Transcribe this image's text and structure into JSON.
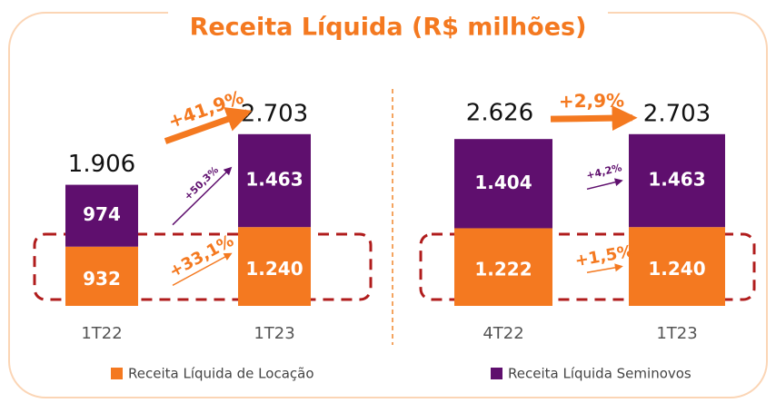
{
  "chart_data": {
    "type": "bar",
    "title": "Receita Líquida (R$ milhões)",
    "series": [
      {
        "name": "Receita Líquida de Locação",
        "color": "#f47920"
      },
      {
        "name": "Receita Líquida Seminovos",
        "color": "#5f0f6e"
      }
    ],
    "panels": [
      {
        "categories": [
          "1T22",
          "1T23"
        ],
        "values": [
          [
            932,
            1240
          ],
          [
            974,
            1463
          ]
        ],
        "value_labels": [
          [
            "932",
            "1.240"
          ],
          [
            "974",
            "1.463"
          ]
        ],
        "totals": [
          1906,
          2703
        ],
        "total_labels": [
          "1.906",
          "2.703"
        ],
        "growth_total": "+41,9%",
        "growth_series": [
          "+33,1%",
          "+50,3%"
        ]
      },
      {
        "categories": [
          "4T22",
          "1T23"
        ],
        "values": [
          [
            1222,
            1240
          ],
          [
            1404,
            1463
          ]
        ],
        "value_labels": [
          [
            "1.222",
            "1.240"
          ],
          [
            "1.404",
            "1.463"
          ]
        ],
        "totals": [
          2626,
          2703
        ],
        "total_labels": [
          "2.626",
          "2.703"
        ],
        "growth_total": "+2,9%",
        "growth_series": [
          "+1,5%",
          "+4,2%"
        ]
      }
    ]
  }
}
